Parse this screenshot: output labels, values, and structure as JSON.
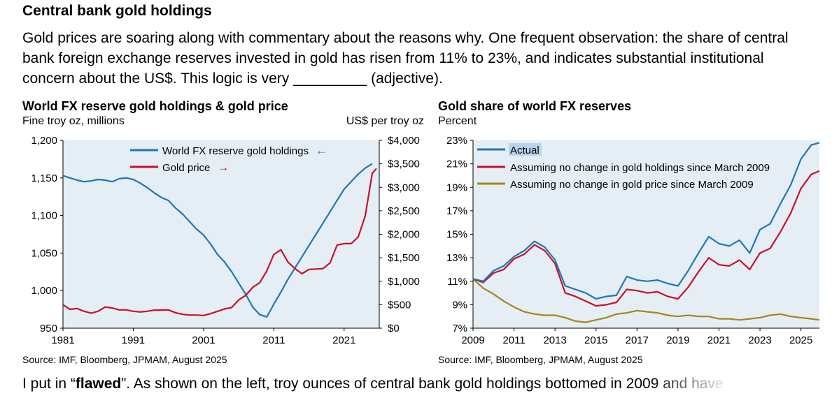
{
  "header": {
    "title": "Central bank gold holdings",
    "intro": "Gold prices are soaring along with commentary about the reasons why.  One frequent observation: the share of central bank foreign exchange reserves invested in gold has risen from 11% to 23%, and indicates substantial institutional concern about the US$.   This logic is very _________ (adjective)."
  },
  "footer": {
    "before": "I put in “",
    "bold": "flawed",
    "after": "”.  As shown on the left, troy ounces of central bank gold holdings bottomed in 2009 and have"
  },
  "colors": {
    "blue": "#1f77b4",
    "red": "#c8102e",
    "gold": "#a88420",
    "plotbg": "#e5eef4"
  },
  "chart_data": [
    {
      "type": "line",
      "title": "World FX reserve gold holdings & gold price",
      "ylabel_left": "Fine troy oz, millions",
      "ylabel_right": "US$ per troy oz",
      "xlim": [
        1981,
        2026
      ],
      "ylim_left": [
        950,
        1200
      ],
      "ylim_right": [
        0,
        4000
      ],
      "xticks": [
        1981,
        1991,
        2001,
        2011,
        2021
      ],
      "yticks_left": [
        "950",
        "1,000",
        "1,050",
        "1,100",
        "1,150",
        "1,200"
      ],
      "yticks_right": [
        "$0",
        "$500",
        "$1,000",
        "$1,500",
        "$2,000",
        "$2,500",
        "$3,000",
        "$3,500",
        "$4,000"
      ],
      "source": "Source: IMF, Bloomberg, JPMAM, August 2025",
      "series": [
        {
          "name": "World FX reserve gold holdings",
          "axis": "left",
          "color": "#1f77b4",
          "arrow": "←",
          "points": [
            [
              1981,
              1153
            ],
            [
              1982,
              1150
            ],
            [
              1983,
              1147
            ],
            [
              1984,
              1145
            ],
            [
              1985,
              1146
            ],
            [
              1986,
              1148
            ],
            [
              1987,
              1147
            ],
            [
              1988,
              1145
            ],
            [
              1989,
              1149
            ],
            [
              1990,
              1150
            ],
            [
              1991,
              1148
            ],
            [
              1992,
              1143
            ],
            [
              1993,
              1137
            ],
            [
              1994,
              1130
            ],
            [
              1995,
              1124
            ],
            [
              1996,
              1120
            ],
            [
              1997,
              1110
            ],
            [
              1998,
              1102
            ],
            [
              1999,
              1092
            ],
            [
              2000,
              1082
            ],
            [
              2001,
              1074
            ],
            [
              2002,
              1062
            ],
            [
              2003,
              1048
            ],
            [
              2004,
              1038
            ],
            [
              2005,
              1025
            ],
            [
              2006,
              1010
            ],
            [
              2007,
              995
            ],
            [
              2008,
              978
            ],
            [
              2009,
              968
            ],
            [
              2010,
              965
            ],
            [
              2011,
              982
            ],
            [
              2012,
              998
            ],
            [
              2013,
              1015
            ],
            [
              2014,
              1030
            ],
            [
              2015,
              1045
            ],
            [
              2016,
              1060
            ],
            [
              2017,
              1075
            ],
            [
              2018,
              1090
            ],
            [
              2019,
              1105
            ],
            [
              2020,
              1120
            ],
            [
              2021,
              1135
            ],
            [
              2022,
              1145
            ],
            [
              2023,
              1155
            ],
            [
              2024,
              1163
            ],
            [
              2025,
              1169
            ]
          ]
        },
        {
          "name": "Gold price",
          "axis": "right",
          "color": "#c8102e",
          "arrow": "→",
          "points": [
            [
              1981,
              500
            ],
            [
              1982,
              400
            ],
            [
              1983,
              420
            ],
            [
              1984,
              360
            ],
            [
              1985,
              320
            ],
            [
              1986,
              360
            ],
            [
              1987,
              450
            ],
            [
              1988,
              430
            ],
            [
              1989,
              390
            ],
            [
              1990,
              390
            ],
            [
              1991,
              360
            ],
            [
              1992,
              345
            ],
            [
              1993,
              360
            ],
            [
              1994,
              385
            ],
            [
              1995,
              385
            ],
            [
              1996,
              390
            ],
            [
              1997,
              330
            ],
            [
              1998,
              295
            ],
            [
              1999,
              280
            ],
            [
              2000,
              280
            ],
            [
              2001,
              270
            ],
            [
              2002,
              310
            ],
            [
              2003,
              360
            ],
            [
              2004,
              410
            ],
            [
              2005,
              440
            ],
            [
              2006,
              600
            ],
            [
              2007,
              700
            ],
            [
              2008,
              870
            ],
            [
              2009,
              970
            ],
            [
              2010,
              1220
            ],
            [
              2011,
              1570
            ],
            [
              2012,
              1670
            ],
            [
              2013,
              1410
            ],
            [
              2014,
              1270
            ],
            [
              2015,
              1160
            ],
            [
              2016,
              1250
            ],
            [
              2017,
              1260
            ],
            [
              2018,
              1270
            ],
            [
              2019,
              1390
            ],
            [
              2020,
              1770
            ],
            [
              2021,
              1800
            ],
            [
              2022,
              1800
            ],
            [
              2023,
              1940
            ],
            [
              2024,
              2390
            ],
            [
              2025,
              3300
            ],
            [
              2025.6,
              3400
            ]
          ]
        }
      ]
    },
    {
      "type": "line",
      "title": "Gold share of world FX reserves",
      "ylabel": "Percent",
      "xlim": [
        2009,
        2025.9
      ],
      "ylim": [
        7,
        23
      ],
      "xticks": [
        2009,
        2011,
        2013,
        2015,
        2017,
        2019,
        2021,
        2023,
        2025
      ],
      "yticks": [
        "7%",
        "9%",
        "11%",
        "13%",
        "15%",
        "17%",
        "19%",
        "21%",
        "23%"
      ],
      "source": "Source: IMF, Bloomberg, JPMAM, August 2025",
      "series": [
        {
          "name": "Actual",
          "color": "#1f77b4",
          "points": [
            [
              2009,
              11.2
            ],
            [
              2009.5,
              11.0
            ],
            [
              2010,
              11.9
            ],
            [
              2010.5,
              12.3
            ],
            [
              2011,
              13.1
            ],
            [
              2011.5,
              13.6
            ],
            [
              2012,
              14.4
            ],
            [
              2012.5,
              13.9
            ],
            [
              2013,
              12.8
            ],
            [
              2013.5,
              10.6
            ],
            [
              2014,
              10.3
            ],
            [
              2014.5,
              10.0
            ],
            [
              2015,
              9.5
            ],
            [
              2015.5,
              9.7
            ],
            [
              2016,
              9.8
            ],
            [
              2016.5,
              11.4
            ],
            [
              2017,
              11.1
            ],
            [
              2017.5,
              11.0
            ],
            [
              2018,
              11.1
            ],
            [
              2018.5,
              10.8
            ],
            [
              2019,
              10.6
            ],
            [
              2019.5,
              11.9
            ],
            [
              2020,
              13.4
            ],
            [
              2020.5,
              14.8
            ],
            [
              2021,
              14.2
            ],
            [
              2021.5,
              14.0
            ],
            [
              2022,
              14.5
            ],
            [
              2022.5,
              13.4
            ],
            [
              2023,
              15.4
            ],
            [
              2023.5,
              15.9
            ],
            [
              2024,
              17.6
            ],
            [
              2024.5,
              19.2
            ],
            [
              2025,
              21.4
            ],
            [
              2025.5,
              22.6
            ],
            [
              2025.9,
              22.8
            ]
          ]
        },
        {
          "name": "Assuming no change in gold holdings since March 2009",
          "color": "#c8102e",
          "points": [
            [
              2009,
              11.2
            ],
            [
              2009.5,
              10.9
            ],
            [
              2010,
              11.7
            ],
            [
              2010.5,
              12.0
            ],
            [
              2011,
              12.9
            ],
            [
              2011.5,
              13.3
            ],
            [
              2012,
              14.1
            ],
            [
              2012.5,
              13.6
            ],
            [
              2013,
              12.5
            ],
            [
              2013.5,
              10.0
            ],
            [
              2014,
              9.7
            ],
            [
              2014.5,
              9.3
            ],
            [
              2015,
              8.9
            ],
            [
              2015.5,
              9.0
            ],
            [
              2016,
              9.2
            ],
            [
              2016.5,
              10.3
            ],
            [
              2017,
              10.2
            ],
            [
              2017.5,
              10.0
            ],
            [
              2018,
              10.1
            ],
            [
              2018.5,
              9.7
            ],
            [
              2019,
              9.5
            ],
            [
              2019.5,
              10.5
            ],
            [
              2020,
              11.8
            ],
            [
              2020.5,
              13.0
            ],
            [
              2021,
              12.4
            ],
            [
              2021.5,
              12.3
            ],
            [
              2022,
              12.8
            ],
            [
              2022.5,
              12.0
            ],
            [
              2023,
              13.4
            ],
            [
              2023.5,
              13.8
            ],
            [
              2024,
              15.2
            ],
            [
              2024.5,
              16.8
            ],
            [
              2025,
              18.9
            ],
            [
              2025.5,
              20.1
            ],
            [
              2025.9,
              20.4
            ]
          ]
        },
        {
          "name": "Assuming no change in gold price since March 2009",
          "color": "#a88420",
          "points": [
            [
              2009,
              11.2
            ],
            [
              2009.5,
              10.4
            ],
            [
              2010,
              9.9
            ],
            [
              2010.5,
              9.3
            ],
            [
              2011,
              8.8
            ],
            [
              2011.5,
              8.4
            ],
            [
              2012,
              8.2
            ],
            [
              2012.5,
              8.1
            ],
            [
              2013,
              8.1
            ],
            [
              2013.5,
              7.9
            ],
            [
              2014,
              7.6
            ],
            [
              2014.5,
              7.5
            ],
            [
              2015,
              7.7
            ],
            [
              2015.5,
              7.9
            ],
            [
              2016,
              8.2
            ],
            [
              2016.5,
              8.3
            ],
            [
              2017,
              8.5
            ],
            [
              2017.5,
              8.4
            ],
            [
              2018,
              8.3
            ],
            [
              2018.5,
              8.1
            ],
            [
              2019,
              8.0
            ],
            [
              2019.5,
              8.1
            ],
            [
              2020,
              8.0
            ],
            [
              2020.5,
              8.0
            ],
            [
              2021,
              7.8
            ],
            [
              2021.5,
              7.8
            ],
            [
              2022,
              7.7
            ],
            [
              2022.5,
              7.8
            ],
            [
              2023,
              7.9
            ],
            [
              2023.5,
              8.1
            ],
            [
              2024,
              8.2
            ],
            [
              2024.5,
              8.0
            ],
            [
              2025,
              7.9
            ],
            [
              2025.5,
              7.8
            ],
            [
              2025.9,
              7.7
            ]
          ]
        }
      ]
    }
  ]
}
